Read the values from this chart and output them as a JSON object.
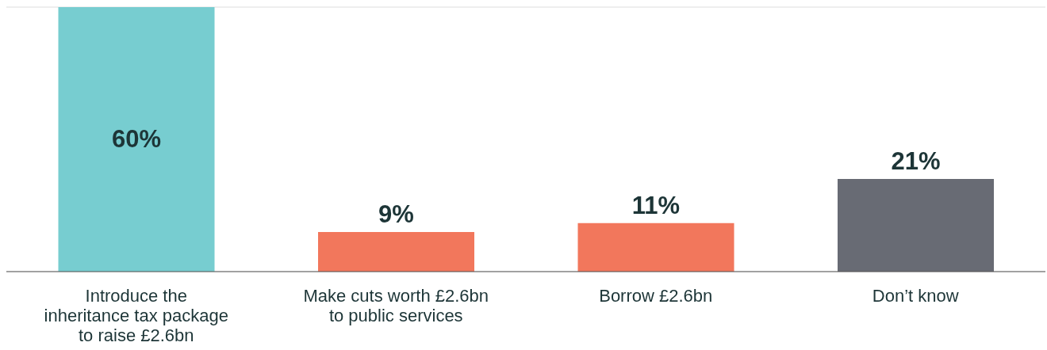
{
  "chart_data": {
    "type": "bar",
    "categories": [
      "Introduce the inheritance tax package to raise £2.6bn",
      "Make cuts worth £2.6bn to public services",
      "Borrow £2.6bn",
      "Don’t know"
    ],
    "values": [
      60,
      9,
      11,
      21
    ],
    "colors": [
      "#77cdd0",
      "#f2775c",
      "#f2775c",
      "#686b74"
    ],
    "value_labels": [
      "60%",
      "9%",
      "11%",
      "21%"
    ],
    "grid": "y",
    "tick_labels": "x"
  }
}
